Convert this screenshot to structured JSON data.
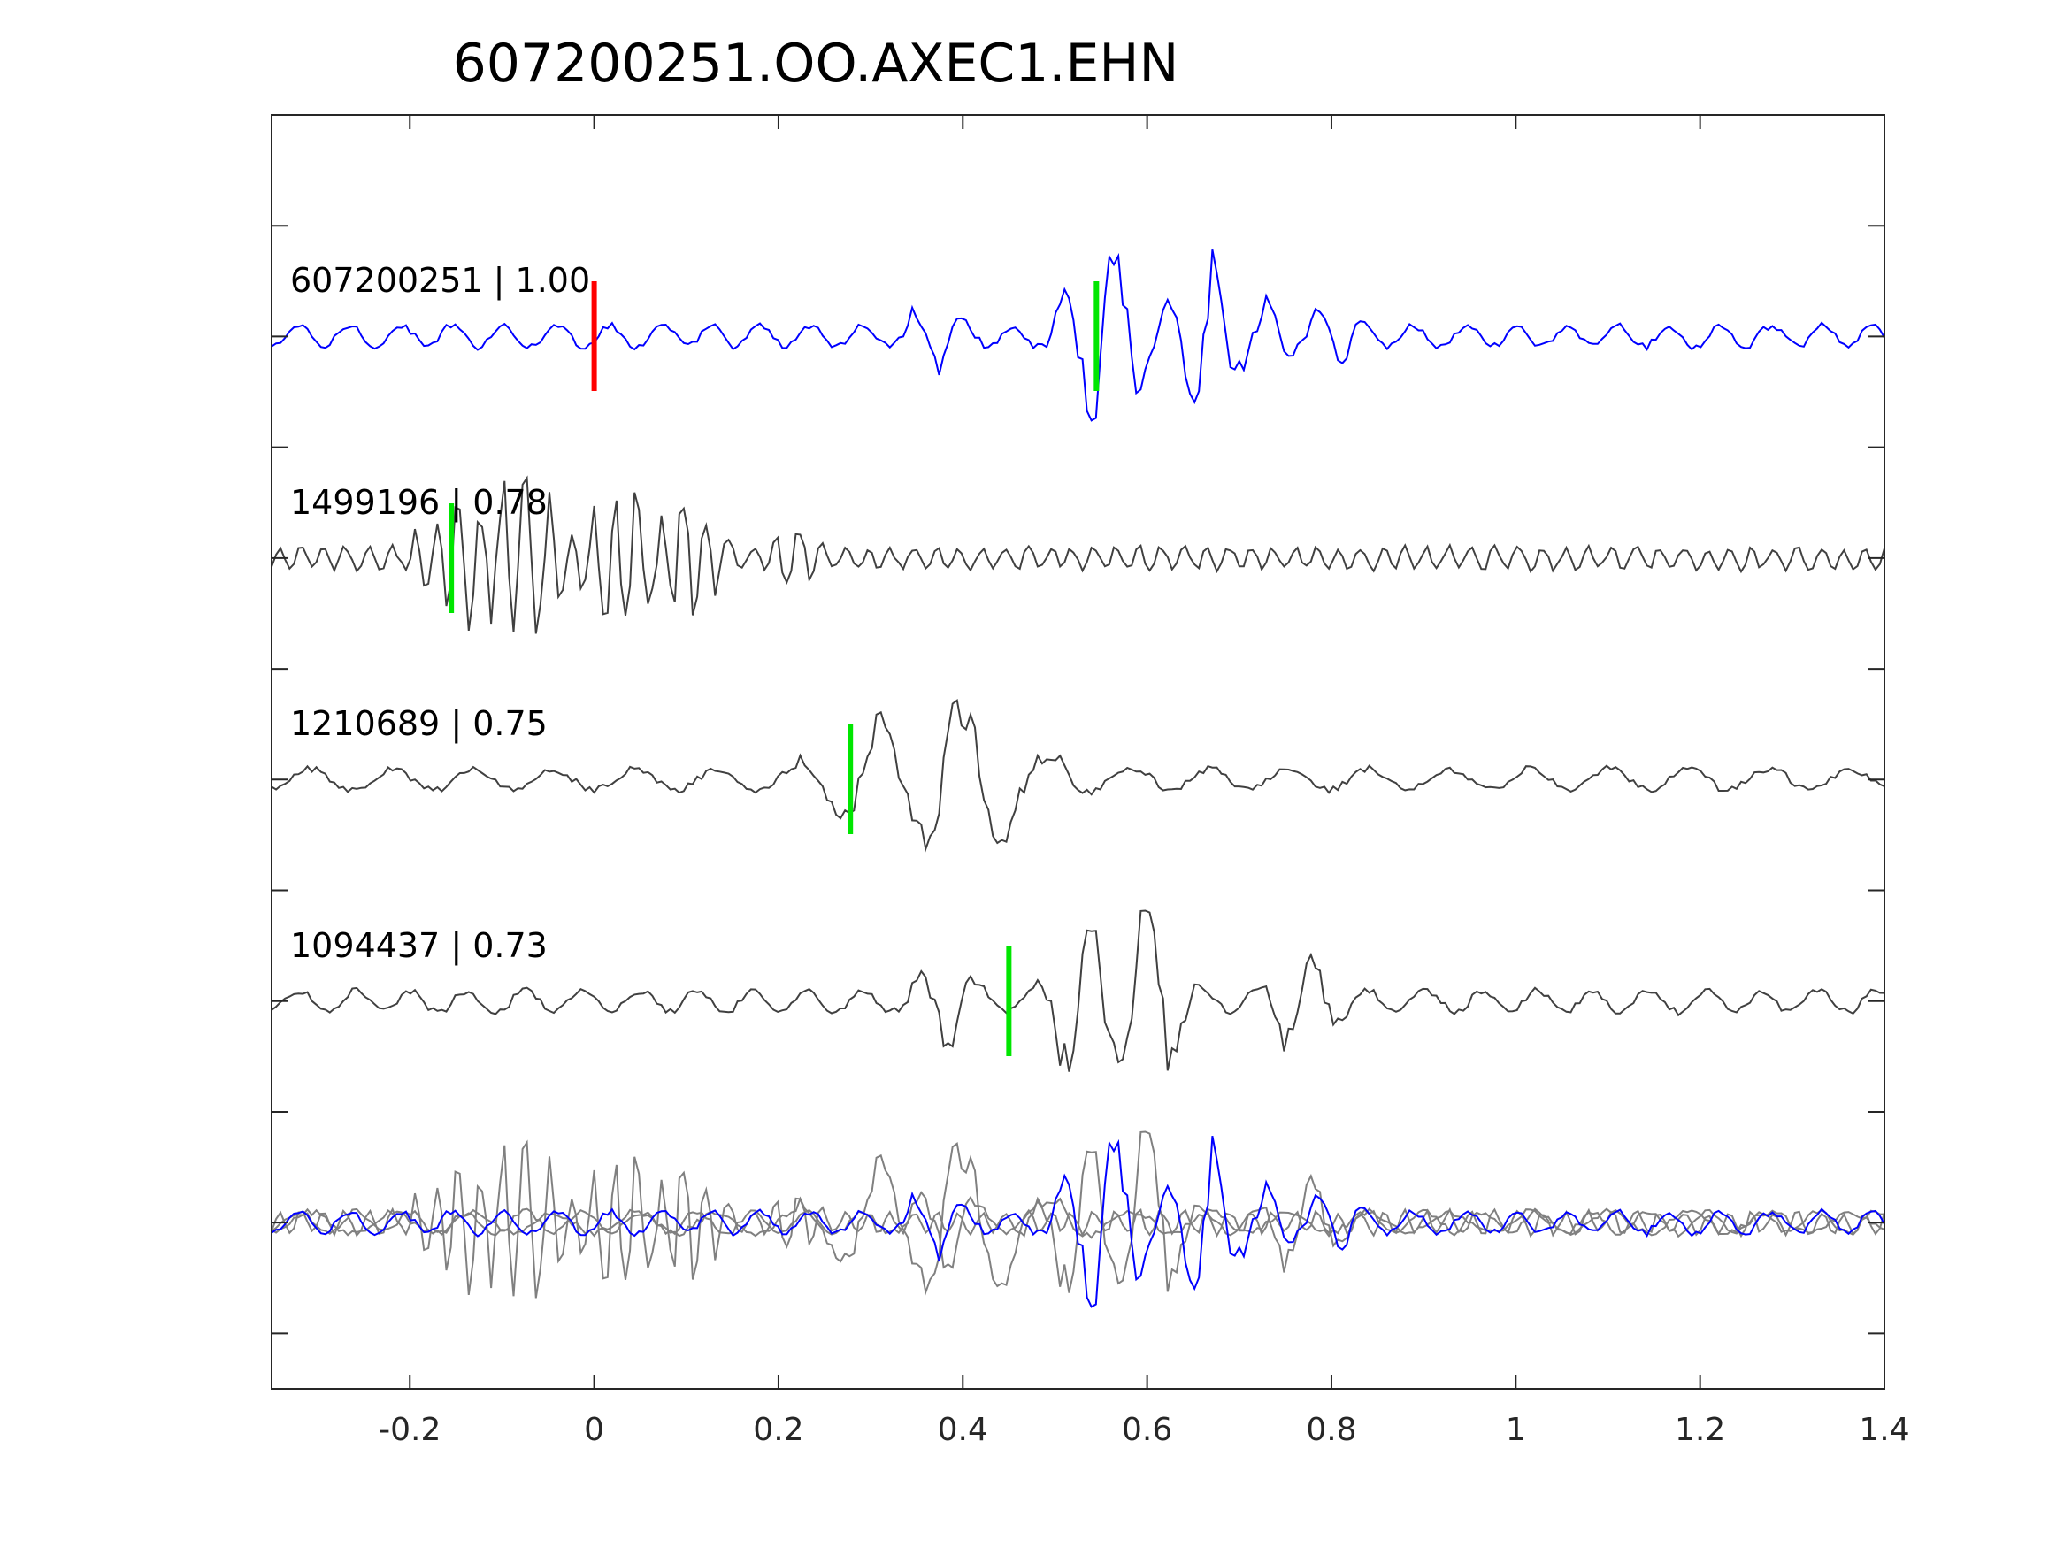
{
  "chart_data": {
    "type": "line",
    "title": "607200251.OO.AXEC1.EHN",
    "xlabel": "",
    "ylabel": "",
    "xlim": [
      -0.35,
      1.4
    ],
    "x_ticks": [
      -0.2,
      0,
      0.2,
      0.4,
      0.6,
      0.8,
      1,
      1.2,
      1.4
    ],
    "x_tick_labels": [
      "-0.2",
      "0",
      "0.2",
      "0.4",
      "0.6",
      "0.8",
      "1",
      "1.2",
      "1.4"
    ],
    "y_tick_count": 11,
    "grid": false,
    "legend": "none",
    "colors": {
      "reference": "#0000ff",
      "match": "#404040",
      "stack": "#808080",
      "pick_reference": "#ff0000",
      "pick_match": "#00e600",
      "axis": "#262626"
    },
    "traces": [
      {
        "label": "607200251 | 1.00",
        "color_role": "reference",
        "pick_time": 0.0,
        "pick_color_role": "pick_reference",
        "secondary_pick_time": 0.545,
        "secondary_pick_color_role": "pick_match",
        "amplitude_envelope": [
          {
            "t": 0.37,
            "amp": 0.35
          },
          {
            "t": 0.54,
            "amp": 0.7
          },
          {
            "t": 0.56,
            "amp": 1.0
          },
          {
            "t": 0.66,
            "amp": 0.9
          },
          {
            "t": 0.72,
            "amp": 0.4
          },
          {
            "t": 0.8,
            "amp": 0.3
          }
        ]
      },
      {
        "label": "1499196 | 0.78",
        "color_role": "match",
        "pick_time": -0.155,
        "pick_color_role": "pick_match",
        "amplitude_envelope": [
          {
            "t": -0.15,
            "amp": 0.7
          },
          {
            "t": -0.08,
            "amp": 1.0
          },
          {
            "t": 0.03,
            "amp": 0.9
          },
          {
            "t": 0.1,
            "amp": 0.6
          },
          {
            "t": 0.22,
            "amp": 0.35
          }
        ]
      },
      {
        "label": "1210689 | 0.75",
        "color_role": "match",
        "pick_time": 0.278,
        "pick_color_role": "pick_match",
        "amplitude_envelope": [
          {
            "t": 0.25,
            "amp": 0.3
          },
          {
            "t": 0.3,
            "amp": 0.7
          },
          {
            "t": 0.38,
            "amp": 1.0
          },
          {
            "t": 0.42,
            "amp": 0.9
          },
          {
            "t": 0.5,
            "amp": 0.3
          }
        ]
      },
      {
        "label": "1094437 | 0.73",
        "color_role": "match",
        "pick_time": 0.45,
        "pick_color_role": "pick_match",
        "amplitude_envelope": [
          {
            "t": 0.38,
            "amp": 0.5
          },
          {
            "t": 0.53,
            "amp": 0.8
          },
          {
            "t": 0.6,
            "amp": 1.0
          },
          {
            "t": 0.77,
            "amp": 0.55
          }
        ]
      },
      {
        "label": "",
        "color_role": "stack",
        "description": "overlay of aligned waveforms"
      }
    ]
  }
}
